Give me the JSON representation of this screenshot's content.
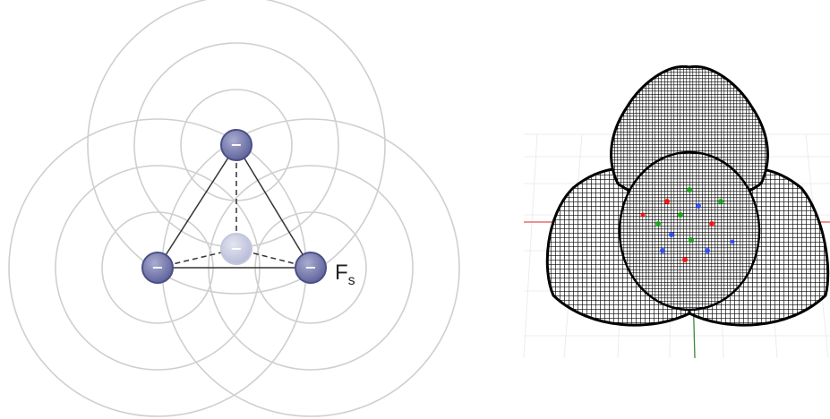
{
  "left_diagram": {
    "charge_symbol": "−",
    "force_label": "F",
    "force_subscript": "s",
    "colors": {
      "field_rings": "#cfcfcf",
      "charge_fill": "#7378aa",
      "charge_stroke": "#4a4f86",
      "ghost_fill": "#c9cbe0",
      "bond_line": "#333333"
    }
  },
  "right_render": {
    "colors": {
      "mesh": "#000000",
      "floor_grid": "#e6e6e6",
      "axis_x": "#e05050",
      "axis_y": "#3a8a3a",
      "inner_particles": [
        "#ff0000",
        "#00aa00",
        "#2040ff"
      ]
    }
  }
}
